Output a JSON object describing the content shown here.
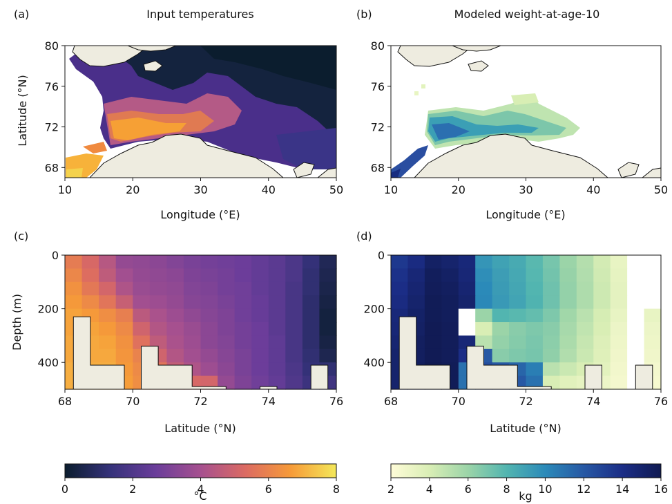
{
  "chart_data": [
    {
      "panel": "(a)",
      "title": "Input temperatures",
      "type": "heatmap",
      "xlabel": "Longitude (°E)",
      "ylabel": "Latitude (°N)",
      "xlim": [
        10,
        50
      ],
      "ylim": [
        67,
        80
      ],
      "xticks": [
        10,
        20,
        30,
        40,
        50
      ],
      "yticks": [
        68,
        72,
        76,
        80
      ],
      "colorbar": "temperature"
    },
    {
      "panel": "(b)",
      "title": "Modeled weight-at-age-10",
      "type": "heatmap",
      "xlabel": "Longitude (°E)",
      "ylabel": "",
      "xlim": [
        10,
        50
      ],
      "ylim": [
        67,
        80
      ],
      "xticks": [
        10,
        20,
        30,
        40,
        50
      ],
      "yticks": [
        68,
        72,
        76,
        80
      ],
      "colorbar": "weight"
    },
    {
      "panel": "(c)",
      "title": "",
      "type": "heatmap",
      "xlabel": "Latitude (°N)",
      "ylabel": "Depth (m)",
      "xlim": [
        68,
        76
      ],
      "ylim": [
        500,
        0
      ],
      "xticks": [
        68,
        70,
        72,
        74,
        76
      ],
      "yticks": [
        0,
        200,
        400
      ],
      "colorbar": "temperature",
      "x": [
        68.25,
        68.75,
        69.25,
        69.75,
        70.25,
        70.75,
        71.25,
        71.75,
        72.25,
        72.75,
        73.25,
        73.75,
        74.25,
        74.75,
        75.25,
        75.75
      ],
      "depth": [
        25,
        75,
        125,
        175,
        225,
        275,
        325,
        375,
        425,
        475
      ],
      "values": [
        [
          5.8,
          5.2,
          4.4,
          3.6,
          3.5,
          3.4,
          3.2,
          3.0,
          2.9,
          2.8,
          2.7,
          2.5,
          2.3,
          1.9,
          1.3,
          0.7
        ],
        [
          6.1,
          5.4,
          4.6,
          3.9,
          3.6,
          3.5,
          3.4,
          3.1,
          3.0,
          2.9,
          2.7,
          2.5,
          2.3,
          1.9,
          1.2,
          0.6
        ],
        [
          6.4,
          5.7,
          5.1,
          4.2,
          3.7,
          3.6,
          3.5,
          3.2,
          3.1,
          2.9,
          2.8,
          2.5,
          2.3,
          1.8,
          1.2,
          0.5
        ],
        [
          6.6,
          6.2,
          5.6,
          4.8,
          3.9,
          3.8,
          3.6,
          3.3,
          3.2,
          3.0,
          2.8,
          2.6,
          2.3,
          1.8,
          1.1,
          0.4
        ],
        [
          6.8,
          6.6,
          6.3,
          5.9,
          4.5,
          4.1,
          3.8,
          3.5,
          3.3,
          3.1,
          2.8,
          2.6,
          2.3,
          1.8,
          1.1,
          0.3
        ],
        [
          6.8,
          6.8,
          6.6,
          6.2,
          5.0,
          4.3,
          4.0,
          3.7,
          3.4,
          3.1,
          2.9,
          2.7,
          2.3,
          1.8,
          1.1,
          0.3
        ],
        [
          6.9,
          6.9,
          6.8,
          6.4,
          5.5,
          4.6,
          4.1,
          3.8,
          3.4,
          3.2,
          2.9,
          2.7,
          2.4,
          1.8,
          1.1,
          0.4
        ],
        [
          6.9,
          6.9,
          6.9,
          6.5,
          6.0,
          5.0,
          4.3,
          3.9,
          3.6,
          3.3,
          3.0,
          2.7,
          2.4,
          1.8,
          1.2,
          0.6
        ],
        [
          7.0,
          7.0,
          7.0,
          6.6,
          6.2,
          5.6,
          4.7,
          4.2,
          3.8,
          3.4,
          3.0,
          2.7,
          2.4,
          1.9,
          1.3,
          1.2
        ],
        [
          7.0,
          7.0,
          7.0,
          6.7,
          6.3,
          5.9,
          5.5,
          5.2,
          5.1,
          3.6,
          3.1,
          2.8,
          2.5,
          2.0,
          1.5,
          1.6
        ]
      ],
      "bottom_profile": [
        [
          68.0,
          500
        ],
        [
          68.25,
          500
        ],
        [
          68.25,
          230
        ],
        [
          68.75,
          230
        ],
        [
          68.75,
          410
        ],
        [
          69.75,
          410
        ],
        [
          69.75,
          500
        ],
        [
          70.25,
          500
        ],
        [
          70.25,
          340
        ],
        [
          70.75,
          340
        ],
        [
          70.75,
          410
        ],
        [
          71.75,
          410
        ],
        [
          71.75,
          490
        ],
        [
          72.75,
          490
        ],
        [
          72.75,
          500
        ],
        [
          73.75,
          500
        ],
        [
          73.75,
          490
        ],
        [
          74.25,
          490
        ],
        [
          74.25,
          500
        ],
        [
          75.25,
          500
        ],
        [
          75.25,
          410
        ],
        [
          75.75,
          410
        ],
        [
          75.75,
          500
        ],
        [
          76.0,
          500
        ]
      ]
    },
    {
      "panel": "(d)",
      "title": "",
      "type": "heatmap",
      "xlabel": "Latitude (°N)",
      "ylabel": "",
      "xlim": [
        68,
        76
      ],
      "ylim": [
        500,
        0
      ],
      "xticks": [
        68,
        70,
        72,
        74,
        76
      ],
      "yticks": [
        0,
        200,
        400
      ],
      "colorbar": "weight",
      "x": [
        68.25,
        68.75,
        69.25,
        69.75,
        70.25,
        70.75,
        71.25,
        71.75,
        72.25,
        72.75,
        73.25,
        73.75,
        74.25,
        74.75,
        75.25,
        75.75
      ],
      "depth": [
        25,
        75,
        125,
        175,
        225,
        275,
        325,
        375,
        425,
        475
      ],
      "values": [
        [
          13.5,
          14.2,
          15.3,
          15.0,
          14.5,
          9.5,
          8.9,
          8.5,
          7.8,
          7.0,
          6.0,
          5.2,
          4.2,
          3.2,
          null,
          null
        ],
        [
          13.8,
          14.6,
          15.6,
          15.3,
          14.6,
          9.8,
          9.1,
          8.6,
          7.9,
          7.1,
          6.1,
          5.3,
          4.3,
          3.3,
          null,
          null
        ],
        [
          14.0,
          14.8,
          15.7,
          15.5,
          14.8,
          10.0,
          9.2,
          8.7,
          8.0,
          7.2,
          6.2,
          5.4,
          4.4,
          3.4,
          null,
          null
        ],
        [
          14.2,
          15.0,
          15.8,
          15.6,
          15.0,
          10.1,
          9.3,
          8.8,
          8.1,
          7.2,
          6.2,
          5.4,
          4.4,
          3.4,
          null,
          null
        ],
        [
          14.5,
          15.2,
          15.8,
          15.6,
          null,
          6.0,
          8.0,
          7.8,
          7.5,
          6.8,
          5.8,
          5.0,
          4.1,
          3.2,
          null,
          3.2
        ],
        [
          14.6,
          15.3,
          15.9,
          15.7,
          null,
          4.0,
          6.0,
          6.5,
          6.8,
          6.5,
          5.6,
          4.8,
          4.0,
          3.0,
          null,
          3.0
        ],
        [
          14.8,
          15.5,
          15.9,
          15.7,
          14.6,
          5.0,
          6.2,
          6.6,
          6.9,
          6.4,
          5.5,
          4.6,
          3.8,
          2.9,
          null,
          2.9
        ],
        [
          15.0,
          15.5,
          15.9,
          15.7,
          14.0,
          12.0,
          6.5,
          6.8,
          7.0,
          6.3,
          5.3,
          4.5,
          3.7,
          2.8,
          null,
          2.8
        ],
        [
          15.0,
          15.6,
          16.0,
          15.8,
          11.0,
          12.5,
          12.0,
          11.5,
          10.5,
          5.0,
          4.5,
          4.0,
          3.5,
          2.7,
          null,
          2.6
        ],
        [
          15.0,
          15.6,
          16.0,
          15.8,
          11.0,
          12.8,
          12.5,
          12.0,
          11.0,
          4.0,
          3.6,
          3.3,
          3.0,
          2.6,
          null,
          2.5
        ]
      ],
      "bottom_profile": [
        [
          68.0,
          500
        ],
        [
          68.25,
          500
        ],
        [
          68.25,
          230
        ],
        [
          68.75,
          230
        ],
        [
          68.75,
          410
        ],
        [
          69.75,
          410
        ],
        [
          69.75,
          500
        ],
        [
          70.25,
          500
        ],
        [
          70.25,
          340
        ],
        [
          70.75,
          340
        ],
        [
          70.75,
          410
        ],
        [
          71.75,
          410
        ],
        [
          71.75,
          490
        ],
        [
          72.75,
          490
        ],
        [
          72.75,
          500
        ],
        [
          73.75,
          500
        ],
        [
          73.75,
          410
        ],
        [
          74.25,
          410
        ],
        [
          74.25,
          500
        ],
        [
          75.25,
          500
        ],
        [
          75.25,
          410
        ],
        [
          75.75,
          410
        ],
        [
          75.75,
          500
        ],
        [
          76.0,
          500
        ]
      ]
    }
  ],
  "colorbars": {
    "temperature": {
      "label": "°C",
      "min": 0,
      "max": 8,
      "ticks": [
        0,
        2,
        4,
        6,
        8
      ],
      "stops": [
        "#0b1d2e",
        "#35327a",
        "#6a3d9a",
        "#a6508f",
        "#dc6b62",
        "#f69b38",
        "#f4e85a"
      ]
    },
    "weight": {
      "label": "kg",
      "min": 2,
      "max": 16,
      "ticks": [
        2,
        4,
        6,
        8,
        10,
        12,
        14,
        16
      ],
      "stops": [
        "#fffcd8",
        "#d9eeb5",
        "#9bd4a8",
        "#52b5b0",
        "#2b8ab9",
        "#2758a4",
        "#1b2d86",
        "#101a52"
      ]
    }
  },
  "colors": {
    "land": "#eeece0",
    "coast": "#111111"
  }
}
